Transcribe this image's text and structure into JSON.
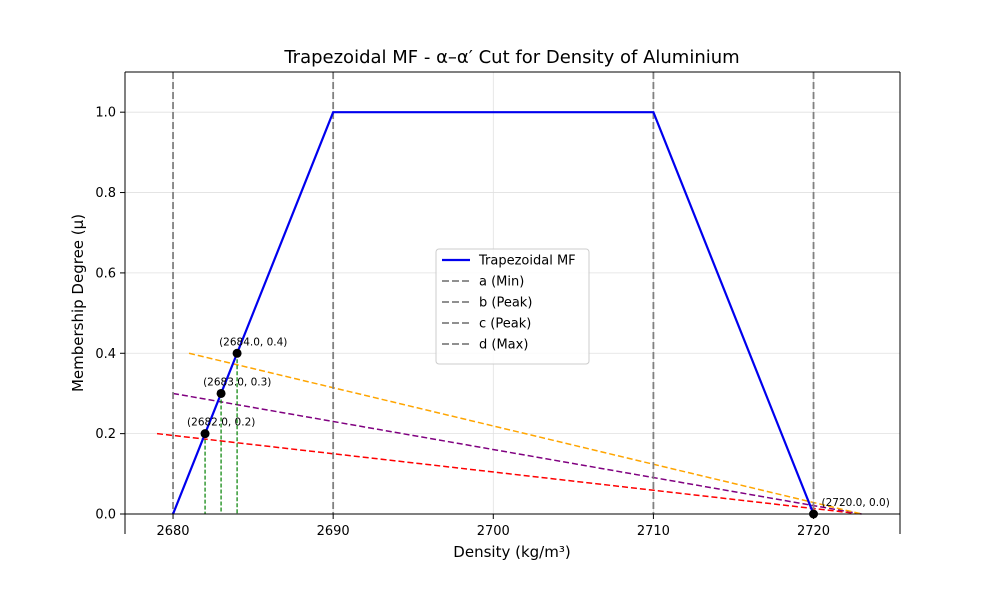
{
  "chart_data": {
    "type": "line",
    "title": "Trapezoidal MF - α–α′ Cut for Density of Aluminium",
    "xlabel": "Density (kg/m³)",
    "ylabel": "Membership Degree (μ)",
    "xlim": [
      2677,
      2725.4
    ],
    "ylim": [
      0,
      1.1
    ],
    "grid": true,
    "legend_position": "center",
    "x_ticks": [
      2680,
      2690,
      2700,
      2710,
      2720
    ],
    "x_tick_labels": [
      "2680",
      "2690",
      "2700",
      "2710",
      "2720"
    ],
    "y_ticks": [
      0.0,
      0.2,
      0.4,
      0.6,
      0.8,
      1.0
    ],
    "y_tick_labels": [
      "0.0",
      "0.2",
      "0.4",
      "0.6",
      "0.8",
      "1.0"
    ],
    "mf": {
      "name": "Trapezoidal MF",
      "color": "#0000ee",
      "x": [
        2680,
        2690,
        2710,
        2720
      ],
      "y": [
        0,
        1,
        1,
        0
      ]
    },
    "vertical_lines": [
      {
        "name": "a (Min)",
        "x": 2680,
        "color": "#808080"
      },
      {
        "name": "b (Peak)",
        "x": 2690,
        "color": "#808080"
      },
      {
        "name": "c (Peak)",
        "x": 2710,
        "color": "#808080"
      },
      {
        "name": "d (Max)",
        "x": 2720,
        "color": "#808080"
      }
    ],
    "cut_lines": [
      {
        "color": "#ff0000",
        "x": [
          2679,
          2723
        ],
        "y": [
          0.2,
          0.0
        ]
      },
      {
        "color": "#800080",
        "x": [
          2680,
          2723
        ],
        "y": [
          0.3,
          0.0
        ]
      },
      {
        "color": "#ffa500",
        "x": [
          2681,
          2723
        ],
        "y": [
          0.4,
          0.0
        ]
      }
    ],
    "drop_lines": {
      "color": "#008000",
      "x": [
        2682,
        2683,
        2684
      ],
      "y": [
        0.2,
        0.3,
        0.4
      ]
    },
    "points": [
      {
        "x": 2682,
        "y": 0.2,
        "label": "(2682.0, 0.2)"
      },
      {
        "x": 2683,
        "y": 0.3,
        "label": "(2683.0, 0.3)"
      },
      {
        "x": 2684,
        "y": 0.4,
        "label": "(2684.0, 0.4)"
      },
      {
        "x": 2720,
        "y": 0.0,
        "label": "(2720.0, 0.0)"
      }
    ]
  }
}
